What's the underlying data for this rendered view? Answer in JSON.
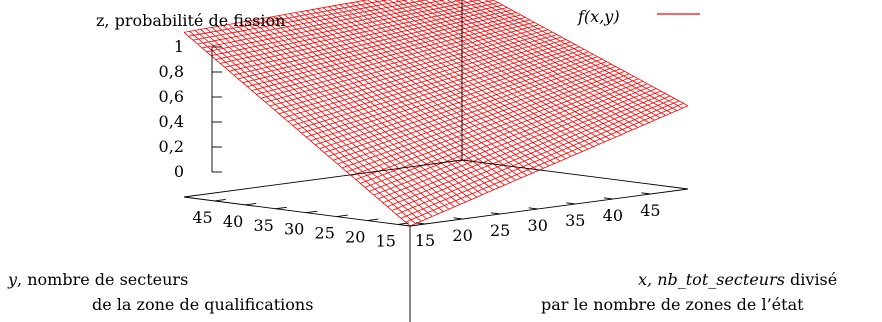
{
  "chart_data": {
    "type": "surface",
    "title": "",
    "zlabel": "z, probabilité de fission",
    "xlabel_var": "x, ",
    "xlabel_name": "nb_tot_secteurs",
    "xlabel_rest": " divisé",
    "xlabel_line2": "par le nombre de zones de l’état",
    "ylabel_line1": "y, nombre de secteurs",
    "ylabel_line2": "de la zone de qualifications",
    "legend": {
      "label": "f(x,y)",
      "color": "#ff0000",
      "position": "top-right"
    },
    "x_ticks": [
      "15",
      "20",
      "25",
      "30",
      "35",
      "40",
      "45"
    ],
    "y_ticks": [
      "15",
      "20",
      "25",
      "30",
      "35",
      "40",
      "45"
    ],
    "z_ticks": [
      "0",
      "0,2",
      "0,4",
      "0,6",
      "0,8",
      "1"
    ],
    "xlim": [
      13,
      50
    ],
    "ylim": [
      13,
      50
    ],
    "zlim": [
      0,
      1
    ],
    "grid_size": 50,
    "corner_values": {
      "x_min_y_min": 0.0,
      "x_max_y_min": 0.47,
      "x_min_y_max": 0.93,
      "x_max_y_max": 1.0
    },
    "surface_color": "#ff0000"
  }
}
